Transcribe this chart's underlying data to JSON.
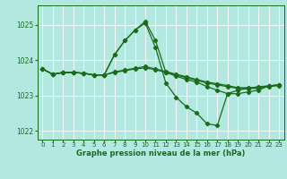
{
  "xlabel": "Graphe pression niveau de la mer (hPa)",
  "background_color": "#b3e8e0",
  "grid_color": "#ffffff",
  "line_color": "#1a6b1a",
  "ylim": [
    1021.75,
    1025.55
  ],
  "yticks": [
    1022,
    1023,
    1024,
    1025
  ],
  "xticks": [
    0,
    1,
    2,
    3,
    4,
    5,
    6,
    7,
    8,
    9,
    10,
    11,
    12,
    13,
    14,
    15,
    16,
    17,
    18,
    19,
    20,
    21,
    22,
    23
  ],
  "series": [
    [
      1023.75,
      1023.6,
      1023.65,
      1023.65,
      1023.63,
      1023.58,
      1023.58,
      1024.15,
      1024.55,
      1024.85,
      1025.1,
      1024.55,
      1023.65,
      1023.55,
      1023.45,
      1023.38,
      1023.25,
      1023.15,
      1023.05,
      1023.05,
      1023.1,
      1023.15,
      1023.27,
      1023.3
    ],
    [
      1023.75,
      1023.6,
      1023.65,
      1023.65,
      1023.63,
      1023.58,
      1023.58,
      1024.15,
      1024.55,
      1024.85,
      1025.05,
      1024.35,
      1023.35,
      1022.95,
      1022.68,
      1022.5,
      1022.2,
      1022.15,
      1023.05,
      1023.15,
      1023.2,
      1023.25,
      1023.27,
      1023.3
    ],
    [
      1023.75,
      1023.6,
      1023.65,
      1023.65,
      1023.63,
      1023.58,
      1023.58,
      1023.67,
      1023.72,
      1023.77,
      1023.82,
      1023.75,
      1023.68,
      1023.6,
      1023.53,
      1023.45,
      1023.38,
      1023.33,
      1023.28,
      1023.22,
      1023.22,
      1023.22,
      1023.27,
      1023.3
    ],
    [
      1023.75,
      1023.6,
      1023.65,
      1023.65,
      1023.63,
      1023.58,
      1023.58,
      1023.65,
      1023.7,
      1023.75,
      1023.78,
      1023.73,
      1023.65,
      1023.58,
      1023.5,
      1023.43,
      1023.35,
      1023.3,
      1023.25,
      1023.2,
      1023.2,
      1023.2,
      1023.25,
      1023.28
    ]
  ]
}
